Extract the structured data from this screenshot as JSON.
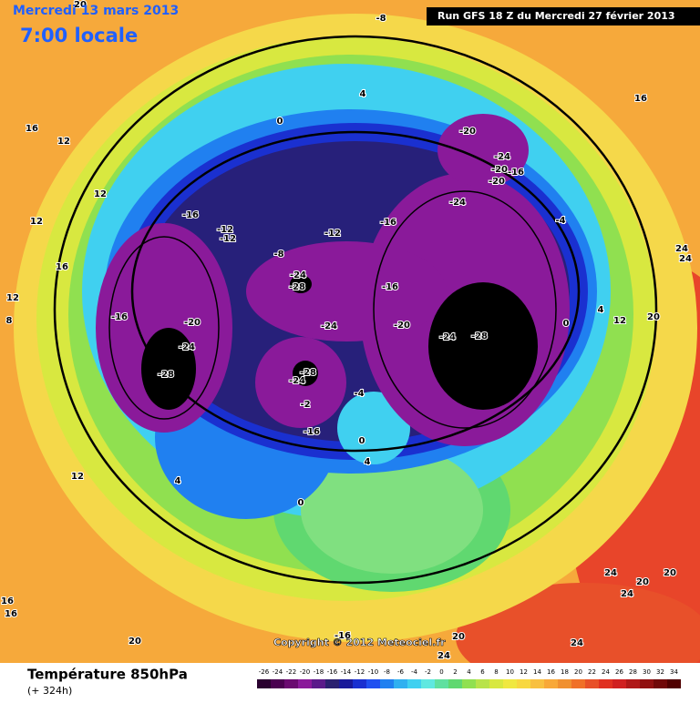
{
  "header": {
    "date": "Mercredi 13 mars 2013",
    "time": "7:00 locale",
    "run": "Run GFS 18 Z du Mercredi 27 février 2013"
  },
  "copyright": "Copyright © 2012 Meteociel.fr",
  "footer": {
    "title": "Température 850hPa",
    "lead": "(+ 324h)"
  },
  "legend": {
    "values": [
      -26,
      -24,
      -22,
      -20,
      -18,
      -16,
      -14,
      -12,
      -10,
      -8,
      -6,
      -4,
      -2,
      0,
      2,
      4,
      6,
      8,
      10,
      12,
      14,
      16,
      18,
      20,
      22,
      24,
      26,
      28,
      30,
      32,
      34
    ],
    "colors": [
      "#2a0030",
      "#4a0050",
      "#6a0a70",
      "#8a1a9a",
      "#5a1a8a",
      "#2a2070",
      "#1a1a9a",
      "#1a30d0",
      "#2050f0",
      "#2080f0",
      "#30b0f0",
      "#40d0f0",
      "#60e8e0",
      "#60e0a0",
      "#60d870",
      "#90e050",
      "#b8e34a",
      "#d8e840",
      "#f0e840",
      "#f8d840",
      "#f8c040",
      "#f8a838",
      "#f09030",
      "#f07028",
      "#e85028",
      "#e03020",
      "#d02020",
      "#b01818",
      "#901010",
      "#700808",
      "#500000"
    ]
  },
  "contour_labels": [
    20,
    -8,
    16,
    12,
    12,
    12,
    16,
    12,
    8,
    4,
    0,
    16,
    -20,
    -24,
    -20,
    -16,
    -20,
    -24,
    -16,
    -12,
    -12,
    -16,
    -12,
    -4,
    -8,
    24,
    24,
    -24,
    -28,
    -16,
    -16,
    -20,
    -24,
    -20,
    0,
    4,
    12,
    20,
    -24,
    -24,
    -28,
    -28,
    -28,
    -24,
    -4,
    -2,
    -16,
    0,
    4,
    12,
    4,
    0,
    24,
    20,
    20,
    24,
    16,
    16,
    20,
    20,
    24,
    24,
    -16
  ]
}
